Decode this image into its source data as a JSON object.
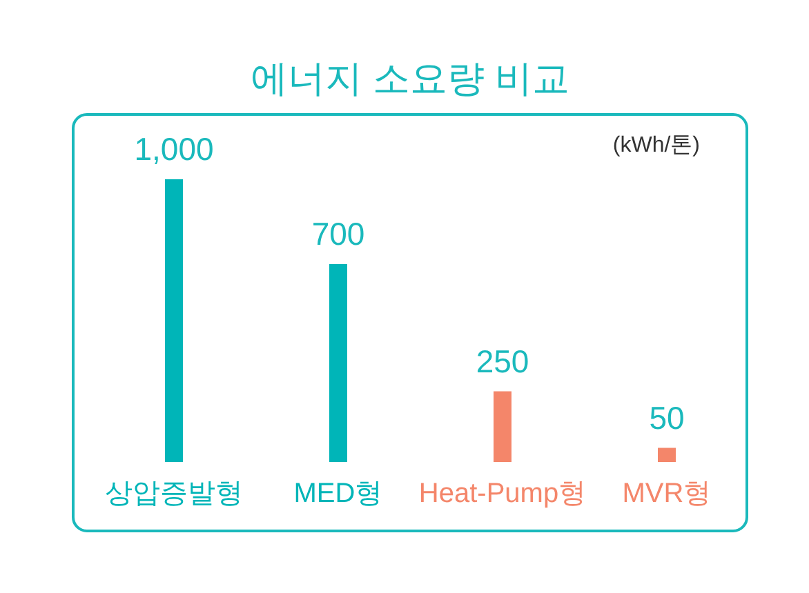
{
  "chart_data": {
    "type": "bar",
    "title": "에너지 소요량 비교",
    "categories": [
      "상압증발형",
      "MED형",
      "Heat-Pump형",
      "MVR형"
    ],
    "values": [
      1000,
      700,
      250,
      50
    ],
    "colors": [
      "#00b5b8",
      "#00b5b8",
      "#f4866a",
      "#f4866a"
    ],
    "value_labels": [
      "1,000",
      "700",
      "250",
      "50"
    ],
    "annotations": [
      "(kWh/톤)"
    ]
  }
}
